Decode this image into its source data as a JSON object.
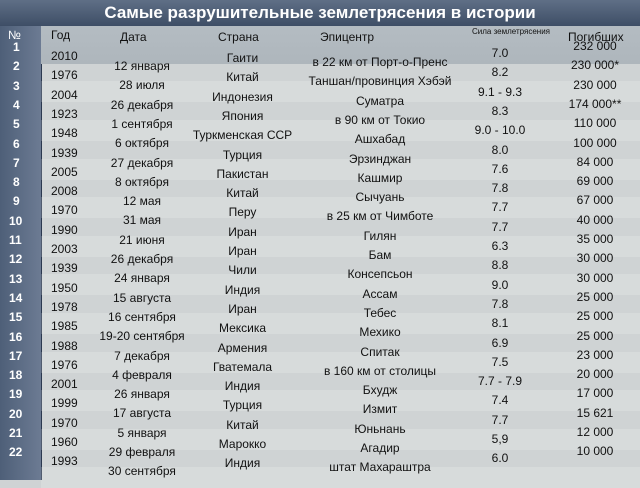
{
  "title": "Самые разрушительные землетрясения в истории",
  "headers": {
    "num": "№",
    "year": "Год",
    "date": "Дата",
    "country": "Страна",
    "epicenter": "Эпицентр",
    "magnitude": "Сила землетрясения",
    "deaths": "Погибших"
  },
  "rows": [
    {
      "n": "1",
      "year": "2010",
      "date": "12 января",
      "country": "Гаити",
      "epicenter": "в 22 км от Порт-о-Пренс",
      "magnitude": "7.0",
      "deaths": "232 000"
    },
    {
      "n": "2",
      "year": "1976",
      "date": "28 июля",
      "country": "Китай",
      "epicenter": "Таншан/провинция Хэбэй",
      "magnitude": "8.2",
      "deaths": "230 000*"
    },
    {
      "n": "3",
      "year": "2004",
      "date": "26 декабря",
      "country": "Индонезия",
      "epicenter": "Суматра",
      "magnitude": "9.1 - 9.3",
      "deaths": "230 000"
    },
    {
      "n": "4",
      "year": "1923",
      "date": "1 сентября",
      "country": "Япония",
      "epicenter": "в 90 км от Токио",
      "magnitude": "8.3",
      "deaths": "174 000**"
    },
    {
      "n": "5",
      "year": "1948",
      "date": "6 октября",
      "country": "Туркменская ССР",
      "epicenter": "Ашхабад",
      "magnitude": "9.0 - 10.0",
      "deaths": "110 000"
    },
    {
      "n": "6",
      "year": "1939",
      "date": "27 декабря",
      "country": "Турция",
      "epicenter": "Эрзинджан",
      "magnitude": "8.0",
      "deaths": "100 000"
    },
    {
      "n": "7",
      "year": "2005",
      "date": "8 октября",
      "country": "Пакистан",
      "epicenter": "Кашмир",
      "magnitude": "7.6",
      "deaths": "84 000"
    },
    {
      "n": "8",
      "year": "2008",
      "date": "12 мая",
      "country": "Китай",
      "epicenter": "Сычуань",
      "magnitude": "7.8",
      "deaths": "69 000"
    },
    {
      "n": "9",
      "year": "1970",
      "date": "31 мая",
      "country": "Перу",
      "epicenter": "в 25 км от Чимботе",
      "magnitude": "7.7",
      "deaths": "67 000"
    },
    {
      "n": "10",
      "year": "1990",
      "date": "21 июня",
      "country": "Иран",
      "epicenter": "Гилян",
      "magnitude": "7.7",
      "deaths": "40 000"
    },
    {
      "n": "11",
      "year": "2003",
      "date": "26 декабря",
      "country": "Иран",
      "epicenter": "Бам",
      "magnitude": "6.3",
      "deaths": "35 000"
    },
    {
      "n": "12",
      "year": "1939",
      "date": "24 января",
      "country": "Чили",
      "epicenter": "Консепсьон",
      "magnitude": "8.8",
      "deaths": "30 000"
    },
    {
      "n": "13",
      "year": "1950",
      "date": "15 августа",
      "country": "Индия",
      "epicenter": "Ассам",
      "magnitude": "9.0",
      "deaths": "30 000"
    },
    {
      "n": "14",
      "year": "1978",
      "date": "16 сентября",
      "country": "Иран",
      "epicenter": "Тебес",
      "magnitude": "7.8",
      "deaths": "25 000"
    },
    {
      "n": "15",
      "year": "1985",
      "date": "19-20 сентября",
      "country": "Мексика",
      "epicenter": "Мехико",
      "magnitude": "8.1",
      "deaths": "25 000"
    },
    {
      "n": "16",
      "year": "1988",
      "date": "7 декабря",
      "country": "Армения",
      "epicenter": "Спитак",
      "magnitude": "6.9",
      "deaths": "25 000"
    },
    {
      "n": "17",
      "year": "1976",
      "date": "4 февраля",
      "country": "Гватемала",
      "epicenter": "в 160 км от столицы",
      "magnitude": "7.5",
      "deaths": "23 000"
    },
    {
      "n": "18",
      "year": "2001",
      "date": "26 января",
      "country": "Индия",
      "epicenter": "Бхудж",
      "magnitude": "7.7 - 7.9",
      "deaths": "20 000"
    },
    {
      "n": "19",
      "year": "1999",
      "date": "17 августа",
      "country": "Турция",
      "epicenter": "Измит",
      "magnitude": "7.4",
      "deaths": "17 000"
    },
    {
      "n": "20",
      "year": "1970",
      "date": "5 января",
      "country": "Китай",
      "epicenter": "Юньнань",
      "magnitude": "7.7",
      "deaths": "15 621"
    },
    {
      "n": "21",
      "year": "1960",
      "date": "29 февраля",
      "country": "Марокко",
      "epicenter": "Агадир",
      "magnitude": "5,9",
      "deaths": "12 000"
    },
    {
      "n": "22",
      "year": "1993",
      "date": "30 сентября",
      "country": "Индия",
      "epicenter": "штат Махараштра",
      "magnitude": "6.0",
      "deaths": "10 000"
    }
  ]
}
